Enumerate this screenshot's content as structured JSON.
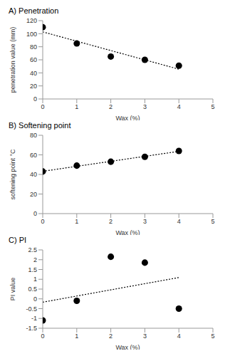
{
  "chart_data": [
    {
      "type": "scatter",
      "title": "A) Penetration",
      "x_label": "Wax (%)",
      "y_label": "penetration value (mm)",
      "x": [
        0,
        1,
        2,
        3,
        4
      ],
      "values": [
        110,
        85,
        65,
        60,
        51
      ],
      "color": "#000000",
      "marker": "circle",
      "xlim": [
        0,
        5
      ],
      "xticks": [
        0,
        1,
        2,
        3,
        4,
        5
      ],
      "ylim": [
        0,
        120
      ],
      "yticks": [
        0,
        20,
        40,
        60,
        80,
        100,
        120
      ],
      "grid": false,
      "trend": {
        "x": [
          0,
          4
        ],
        "values": [
          102.8,
          45.6
        ],
        "line_style": "dotted",
        "color": "#000000"
      }
    },
    {
      "type": "scatter",
      "title": "B) Softening point",
      "x_label": "Wax (%)",
      "y_label": "softening point °C",
      "x": [
        0,
        1,
        2,
        3,
        4
      ],
      "values": [
        43,
        49,
        53,
        58,
        64
      ],
      "color": "#000000",
      "marker": "circle",
      "xlim": [
        0,
        5
      ],
      "xticks": [
        0,
        1,
        2,
        3,
        4,
        5
      ],
      "ylim": [
        0,
        80
      ],
      "yticks": [
        0,
        20,
        40,
        60,
        80
      ],
      "grid": false,
      "trend": {
        "x": [
          0,
          4
        ],
        "values": [
          43.2,
          63.6
        ],
        "line_style": "dotted",
        "color": "#000000"
      }
    },
    {
      "type": "scatter",
      "title": "C) PI",
      "x_label": "Wax (%)",
      "y_label": "PI value",
      "x": [
        0,
        1,
        2,
        3,
        4
      ],
      "values": [
        -1.1,
        -0.1,
        2.15,
        1.85,
        -0.5
      ],
      "color": "#000000",
      "marker": "circle",
      "xlim": [
        0,
        5
      ],
      "xticks": [
        0,
        1,
        2,
        3,
        4,
        5
      ],
      "ylim": [
        -1.5,
        2.5
      ],
      "yticks": [
        -1.5,
        -1,
        -0.5,
        0,
        0.5,
        1,
        1.5,
        2,
        2.5
      ],
      "grid": false,
      "trend": {
        "x": [
          0,
          4
        ],
        "values": [
          -0.17,
          1.09
        ],
        "line_style": "dotted",
        "color": "#000000"
      }
    }
  ]
}
